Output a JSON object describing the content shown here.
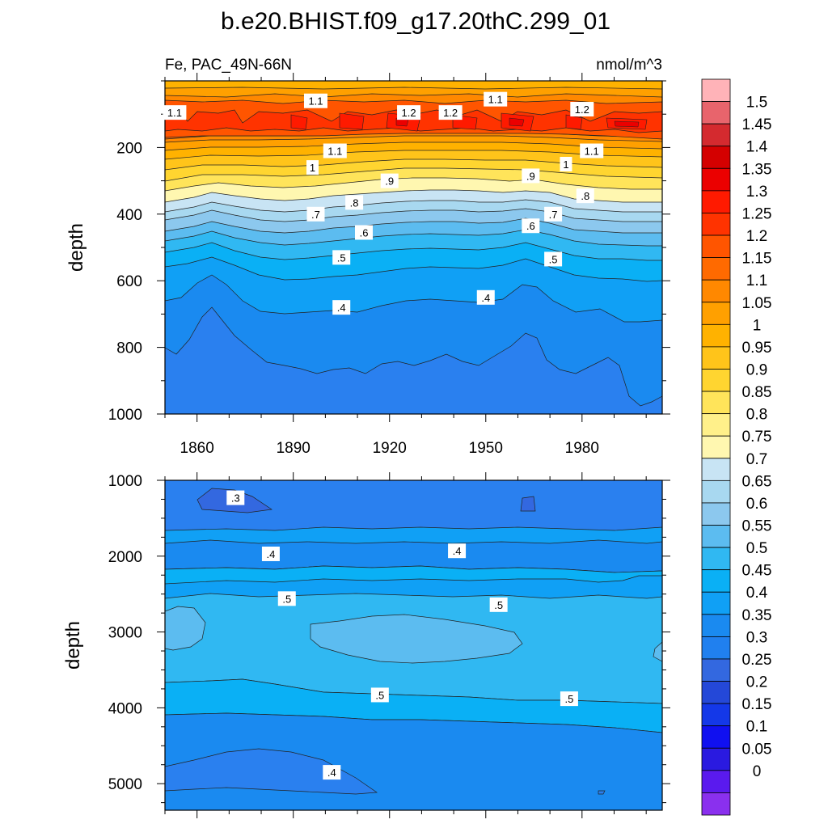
{
  "title": "b.e20.BHIST.f09_g17.20thC.299_01",
  "left_label": "Fe, PAC_49N-66N",
  "right_label": "nmol/m^3",
  "colorbar": {
    "levels": [
      "1.5",
      "1.45",
      "1.4",
      "1.35",
      "1.3",
      "1.25",
      "1.2",
      "1.15",
      "1.1",
      "1.05",
      "1",
      "0.95",
      "0.9",
      "0.85",
      "0.8",
      "0.75",
      "0.7",
      "0.65",
      "0.6",
      "0.55",
      "0.5",
      "0.45",
      "0.4",
      "0.35",
      "0.3",
      "0.25",
      "0.2",
      "0.15",
      "0.1",
      "0.05",
      "0"
    ],
    "colors": [
      "#ffb3b8",
      "#e8646c",
      "#d42a2f",
      "#d40000",
      "#eb0000",
      "#ff1a00",
      "#ff3300",
      "#ff5500",
      "#ff6a00",
      "#ff8800",
      "#ffa000",
      "#ffb200",
      "#ffc41a",
      "#ffd530",
      "#ffe45a",
      "#fff08a",
      "#fff7b0",
      "#c8e4f4",
      "#a8d8f0",
      "#8cc8ee",
      "#5cbcf0",
      "#30b8f2",
      "#0ab0f5",
      "#10a0f5",
      "#1a8af0",
      "#2080ef",
      "#3368e0",
      "#2448d8",
      "#1438e8",
      "#1010f0",
      "#2a1ae0",
      "#5a1aee",
      "#8a30ee"
    ]
  },
  "chart_data": [
    {
      "type": "heatmap",
      "panel": "upper",
      "xlabel": "",
      "ylabel": "depth",
      "x_ticks": [
        "1860",
        "1890",
        "1920",
        "1950",
        "1980"
      ],
      "x_range": [
        1850,
        2005
      ],
      "y_ticks": [
        "200",
        "400",
        "600",
        "800",
        "1000"
      ],
      "y_range": [
        0,
        1000
      ],
      "y_reversed": true,
      "contour_labels": [
        {
          "text": "1.1",
          "year": 1853,
          "depth": 95
        },
        {
          "text": "1.1",
          "year": 1897,
          "depth": 60
        },
        {
          "text": "1.2",
          "year": 1926,
          "depth": 95
        },
        {
          "text": "1.2",
          "year": 1939,
          "depth": 95
        },
        {
          "text": "1.1",
          "year": 1953,
          "depth": 55
        },
        {
          "text": "1.2",
          "year": 1980,
          "depth": 85
        },
        {
          "text": "1.1",
          "year": 1903,
          "depth": 210
        },
        {
          "text": "1",
          "year": 1896,
          "depth": 260
        },
        {
          "text": "1.1",
          "year": 1983,
          "depth": 210
        },
        {
          "text": "1",
          "year": 1975,
          "depth": 250
        },
        {
          "text": ".9",
          "year": 1920,
          "depth": 300
        },
        {
          "text": ".9",
          "year": 1964,
          "depth": 285
        },
        {
          "text": ".8",
          "year": 1909,
          "depth": 365
        },
        {
          "text": ".8",
          "year": 1981,
          "depth": 345
        },
        {
          "text": ".7",
          "year": 1897,
          "depth": 400
        },
        {
          "text": ".7",
          "year": 1971,
          "depth": 400
        },
        {
          "text": ".6",
          "year": 1912,
          "depth": 455
        },
        {
          "text": ".6",
          "year": 1964,
          "depth": 435
        },
        {
          "text": ".5",
          "year": 1905,
          "depth": 530
        },
        {
          "text": ".5",
          "year": 1971,
          "depth": 535
        },
        {
          "text": ".4",
          "year": 1905,
          "depth": 680
        },
        {
          "text": ".4",
          "year": 1950,
          "depth": 650
        }
      ]
    },
    {
      "type": "heatmap",
      "panel": "lower",
      "xlabel": "",
      "ylabel": "depth",
      "x_range": [
        1850,
        2005
      ],
      "y_ticks": [
        "1000",
        "2000",
        "3000",
        "4000",
        "5000"
      ],
      "y_range": [
        1000,
        5350
      ],
      "y_reversed": true,
      "contour_labels": [
        {
          "text": ".3",
          "year": 1872,
          "depth": 1230
        },
        {
          "text": ".4",
          "year": 1883,
          "depth": 1970
        },
        {
          "text": ".4",
          "year": 1941,
          "depth": 1930
        },
        {
          "text": ".5",
          "year": 1888,
          "depth": 2560
        },
        {
          "text": ".5",
          "year": 1954,
          "depth": 2640
        },
        {
          "text": ".5",
          "year": 1917,
          "depth": 3830
        },
        {
          "text": ".5",
          "year": 1976,
          "depth": 3880
        },
        {
          "text": ".4",
          "year": 1902,
          "depth": 4850
        }
      ]
    }
  ]
}
